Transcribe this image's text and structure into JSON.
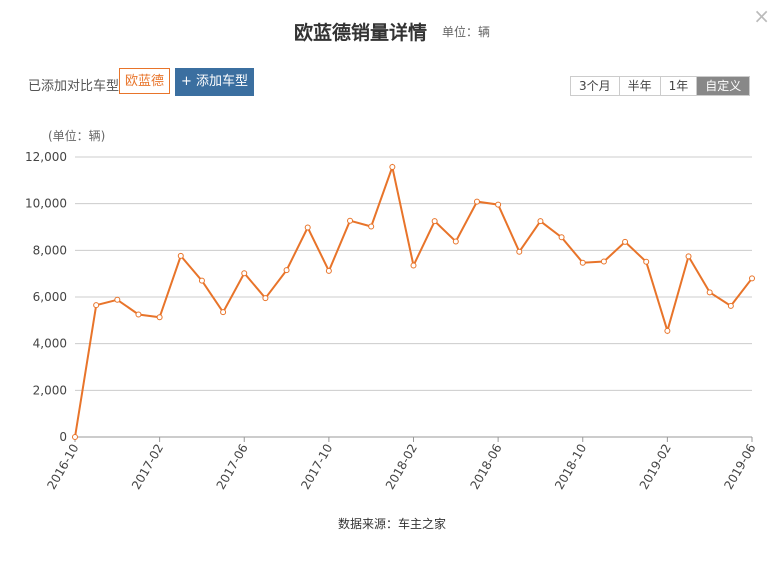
{
  "header": {
    "title": "欧蓝德销量详情",
    "unit": "单位：辆",
    "close_glyph": "×"
  },
  "toolbar": {
    "compare_label": "已添加对比车型:",
    "brand_tag": "欧蓝德",
    "add_button": "+ 添加车型",
    "ranges": [
      "3个月",
      "半年",
      "1年",
      "自定义"
    ],
    "active_range": "自定义"
  },
  "footer": {
    "source": "数据来源：车主之家"
  },
  "colors": {
    "line": "#e8742a",
    "grid": "#cccccc",
    "button": "#3b6fa0"
  },
  "chart_data": {
    "type": "line",
    "ylabel": "(单位：辆)",
    "ylim": [
      0,
      12000
    ],
    "yticks": [
      0,
      2000,
      4000,
      6000,
      8000,
      10000,
      12000
    ],
    "ytick_labels": [
      "0",
      "2,000",
      "4,000",
      "6,000",
      "8,000",
      "10,000",
      "12,000"
    ],
    "x": [
      "2016-10",
      "2016-11",
      "2016-12",
      "2017-01",
      "2017-02",
      "2017-03",
      "2017-04",
      "2017-05",
      "2017-06",
      "2017-07",
      "2017-08",
      "2017-09",
      "2017-10",
      "2017-11",
      "2017-12",
      "2018-01",
      "2018-02",
      "2018-03",
      "2018-04",
      "2018-05",
      "2018-06",
      "2018-07",
      "2018-08",
      "2018-09",
      "2018-10",
      "2018-11",
      "2018-12",
      "2019-01",
      "2019-02",
      "2019-03",
      "2019-04",
      "2019-05",
      "2019-06"
    ],
    "xtick_labels": [
      "2016-10",
      "2017-02",
      "2017-06",
      "2017-10",
      "2018-02",
      "2018-06",
      "2018-10",
      "2019-02",
      "2019-06"
    ],
    "grid": true,
    "series": [
      {
        "values": [
          0,
          5650,
          5880,
          5250,
          5130,
          7760,
          6700,
          5350,
          7020,
          5950,
          7150,
          8980,
          7120,
          9270,
          9020,
          11570,
          7350,
          9250,
          8380,
          10090,
          9960,
          7940,
          9250,
          8560,
          7470,
          7520,
          8360,
          7510,
          4550,
          7740,
          6200,
          5620,
          6800
        ]
      }
    ]
  }
}
